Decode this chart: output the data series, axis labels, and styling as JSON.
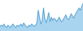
{
  "values": [
    4,
    5,
    4,
    6,
    4,
    3,
    5,
    4,
    3,
    5,
    6,
    4,
    3,
    5,
    4,
    5,
    6,
    4,
    7,
    5,
    4,
    3,
    5,
    4,
    6,
    5,
    4,
    5,
    7,
    18,
    12,
    6,
    9,
    20,
    11,
    7,
    11,
    16,
    8,
    12,
    9,
    11,
    10,
    8,
    10,
    12,
    9,
    8,
    10,
    12,
    14,
    11,
    10,
    12,
    15,
    13,
    11,
    14,
    16,
    18,
    20,
    18,
    21,
    24
  ],
  "line_color": "#5ba3d0",
  "fill_color": "#a8d4f0",
  "background_color": "#ffffff",
  "ylim": [
    0,
    27
  ]
}
